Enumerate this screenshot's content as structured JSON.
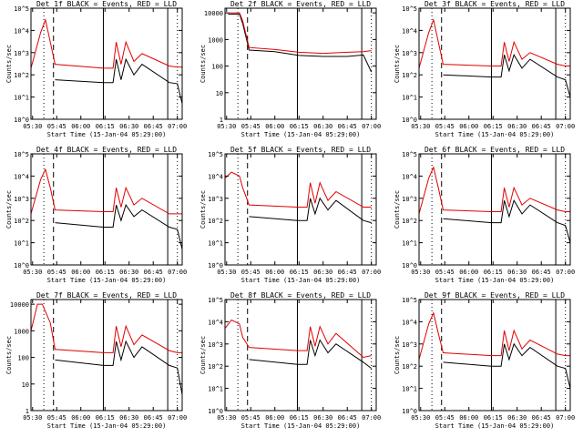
{
  "xaxis": {
    "label": "Start Time (15-Jan-04 05:29:00)",
    "ticks": [
      "05:30",
      "05:45",
      "06:00",
      "06:15",
      "06:30",
      "06:45",
      "07:00"
    ]
  },
  "ylabel": "Counts/sec",
  "colors": {
    "events": "#000000",
    "lld": "#e00000"
  },
  "chart_data": [
    {
      "type": "line",
      "title": "Det 1f BLACK = Events, RED = LLD",
      "ylabel": "Counts/sec",
      "yticks": [
        "10^0",
        "10^1",
        "10^2",
        "10^3",
        "10^4",
        "10^5"
      ],
      "ylim": [
        1,
        100000
      ],
      "log": true,
      "x": [
        "05:29",
        "05:35",
        "05:38",
        "05:41",
        "05:44",
        "06:14",
        "06:20",
        "06:22",
        "06:25",
        "06:28",
        "06:33",
        "06:38",
        "06:55",
        "07:00",
        "07:03"
      ],
      "series": [
        {
          "name": "Events",
          "values": [
            null,
            null,
            null,
            null,
            60,
            45,
            45,
            500,
            60,
            500,
            100,
            300,
            45,
            40,
            5
          ]
        },
        {
          "name": "LLD",
          "values": [
            200,
            8000,
            30000,
            3000,
            300,
            200,
            200,
            3000,
            300,
            3000,
            400,
            900,
            250,
            220,
            220
          ]
        }
      ]
    },
    {
      "type": "line",
      "title": "Det 2f BLACK = Events, RED = LLD",
      "ylabel": "Counts/sec",
      "yticks": [
        "1",
        "10",
        "100",
        "1000",
        "10000"
      ],
      "ylim": [
        1,
        15000
      ],
      "log": true,
      "x": [
        "05:29",
        "05:31",
        "05:38",
        "05:40",
        "05:44",
        "06:00",
        "06:15",
        "06:30",
        "06:45",
        "06:55",
        "07:00",
        "07:01"
      ],
      "series": [
        {
          "name": "Events",
          "values": [
            null,
            9000,
            9000,
            4000,
            400,
            350,
            250,
            230,
            230,
            260,
            60,
            null
          ]
        },
        {
          "name": "LLD",
          "values": [
            null,
            10000,
            10000,
            5000,
            500,
            420,
            330,
            300,
            330,
            350,
            380,
            null
          ]
        }
      ]
    },
    {
      "type": "line",
      "title": "Det 3f BLACK = Events, RED = LLD",
      "ylabel": "Counts/sec",
      "yticks": [
        "10^0",
        "10^1",
        "10^2",
        "10^3",
        "10^4",
        "10^5"
      ],
      "ylim": [
        1,
        100000
      ],
      "log": true,
      "x": [
        "05:29",
        "05:35",
        "05:38",
        "05:41",
        "05:44",
        "06:14",
        "06:20",
        "06:22",
        "06:25",
        "06:28",
        "06:33",
        "06:38",
        "06:55",
        "07:00",
        "07:03"
      ],
      "series": [
        {
          "name": "Events",
          "values": [
            null,
            null,
            null,
            null,
            100,
            80,
            80,
            800,
            150,
            800,
            200,
            500,
            80,
            60,
            10
          ]
        },
        {
          "name": "LLD",
          "values": [
            200,
            8000,
            30000,
            3000,
            300,
            250,
            250,
            3000,
            400,
            3000,
            500,
            1000,
            300,
            250,
            250
          ]
        }
      ]
    },
    {
      "type": "line",
      "title": "Det 4f BLACK = Events, RED = LLD",
      "ylabel": "Counts/sec",
      "yticks": [
        "10^0",
        "10^1",
        "10^2",
        "10^3",
        "10^4",
        "10^5"
      ],
      "ylim": [
        1,
        100000
      ],
      "log": true,
      "x": [
        "05:29",
        "05:35",
        "05:38",
        "05:41",
        "05:44",
        "06:14",
        "06:20",
        "06:22",
        "06:25",
        "06:28",
        "06:33",
        "06:38",
        "06:55",
        "07:00",
        "07:03"
      ],
      "series": [
        {
          "name": "Events",
          "values": [
            null,
            null,
            null,
            null,
            80,
            50,
            50,
            500,
            100,
            500,
            150,
            300,
            50,
            40,
            5
          ]
        },
        {
          "name": "LLD",
          "values": [
            200,
            7000,
            20000,
            3000,
            300,
            250,
            250,
            3000,
            400,
            3000,
            500,
            1000,
            200,
            200,
            200
          ]
        }
      ]
    },
    {
      "type": "line",
      "title": "Det 5f BLACK = Events, RED = LLD",
      "ylabel": "Counts/sec",
      "yticks": [
        "10^0",
        "10^1",
        "10^2",
        "10^3",
        "10^4",
        "10^5"
      ],
      "ylim": [
        1,
        100000
      ],
      "log": true,
      "x": [
        "05:29",
        "05:33",
        "05:38",
        "05:40",
        "05:44",
        "06:14",
        "06:20",
        "06:22",
        "06:25",
        "06:28",
        "06:33",
        "06:38",
        "06:55",
        "07:00",
        "07:01"
      ],
      "series": [
        {
          "name": "Events",
          "values": [
            null,
            null,
            null,
            null,
            150,
            100,
            100,
            1000,
            200,
            1000,
            300,
            800,
            100,
            80,
            null
          ]
        },
        {
          "name": "LLD",
          "values": [
            8000,
            15000,
            10000,
            3000,
            500,
            400,
            400,
            5000,
            600,
            5000,
            800,
            2000,
            400,
            400,
            null
          ]
        }
      ]
    },
    {
      "type": "line",
      "title": "Det 6f BLACK = Events, RED = LLD",
      "ylabel": "Counts/sec",
      "yticks": [
        "10^0",
        "10^1",
        "10^2",
        "10^3",
        "10^4",
        "10^5"
      ],
      "ylim": [
        1,
        100000
      ],
      "log": true,
      "x": [
        "05:29",
        "05:35",
        "05:38",
        "05:41",
        "05:44",
        "06:14",
        "06:20",
        "06:22",
        "06:25",
        "06:28",
        "06:33",
        "06:38",
        "06:55",
        "07:00",
        "07:03"
      ],
      "series": [
        {
          "name": "Events",
          "values": [
            null,
            null,
            null,
            null,
            120,
            80,
            80,
            800,
            150,
            800,
            200,
            500,
            80,
            60,
            10
          ]
        },
        {
          "name": "LLD",
          "values": [
            200,
            8000,
            25000,
            3000,
            300,
            250,
            250,
            3000,
            400,
            3000,
            500,
            1000,
            300,
            250,
            250
          ]
        }
      ]
    },
    {
      "type": "line",
      "title": "Det 7f BLACK = Events, RED = LLD",
      "ylabel": "Counts/sec",
      "yticks": [
        "1",
        "10",
        "100",
        "1000",
        "10000"
      ],
      "ylim": [
        1,
        15000
      ],
      "log": true,
      "x": [
        "05:29",
        "05:33",
        "05:36",
        "05:41",
        "05:44",
        "06:14",
        "06:20",
        "06:22",
        "06:25",
        "06:28",
        "06:33",
        "06:38",
        "06:55",
        "07:00",
        "07:03"
      ],
      "series": [
        {
          "name": "Events",
          "values": [
            null,
            null,
            null,
            null,
            80,
            50,
            50,
            400,
            80,
            400,
            100,
            250,
            50,
            40,
            4
          ]
        },
        {
          "name": "LLD",
          "values": [
            1000,
            10000,
            10000,
            2000,
            200,
            150,
            150,
            1500,
            250,
            1500,
            300,
            700,
            180,
            150,
            150
          ]
        }
      ]
    },
    {
      "type": "line",
      "title": "Det 8f BLACK = Events, RED = LLD",
      "ylabel": "Counts/sec",
      "yticks": [
        "10^0",
        "10^1",
        "10^2",
        "10^3",
        "10^4",
        "10^5"
      ],
      "ylim": [
        1,
        100000
      ],
      "log": true,
      "x": [
        "05:29",
        "05:33",
        "05:38",
        "05:40",
        "05:44",
        "06:14",
        "06:20",
        "06:22",
        "06:25",
        "06:28",
        "06:33",
        "06:38",
        "06:55",
        "07:00",
        "07:01"
      ],
      "series": [
        {
          "name": "Events",
          "values": [
            null,
            null,
            null,
            null,
            200,
            120,
            120,
            1500,
            300,
            1500,
            400,
            1000,
            150,
            80,
            null
          ]
        },
        {
          "name": "LLD",
          "values": [
            5000,
            12000,
            8000,
            2000,
            700,
            500,
            500,
            6000,
            800,
            6000,
            1000,
            3000,
            250,
            300,
            null
          ]
        }
      ]
    },
    {
      "type": "line",
      "title": "Det 9f BLACK = Events, RED = LLD",
      "ylabel": "Counts/sec",
      "yticks": [
        "10^0",
        "10^1",
        "10^2",
        "10^3",
        "10^4",
        "10^5"
      ],
      "ylim": [
        1,
        100000
      ],
      "log": true,
      "x": [
        "05:29",
        "05:35",
        "05:38",
        "05:41",
        "05:44",
        "06:14",
        "06:20",
        "06:22",
        "06:25",
        "06:28",
        "06:33",
        "06:38",
        "06:55",
        "07:00",
        "07:03"
      ],
      "series": [
        {
          "name": "Events",
          "values": [
            null,
            null,
            null,
            null,
            150,
            100,
            100,
            1000,
            200,
            1000,
            300,
            700,
            100,
            80,
            10
          ]
        },
        {
          "name": "LLD",
          "values": [
            200,
            8000,
            25000,
            3000,
            400,
            300,
            300,
            4000,
            500,
            4000,
            600,
            1500,
            350,
            300,
            300
          ]
        }
      ]
    }
  ]
}
